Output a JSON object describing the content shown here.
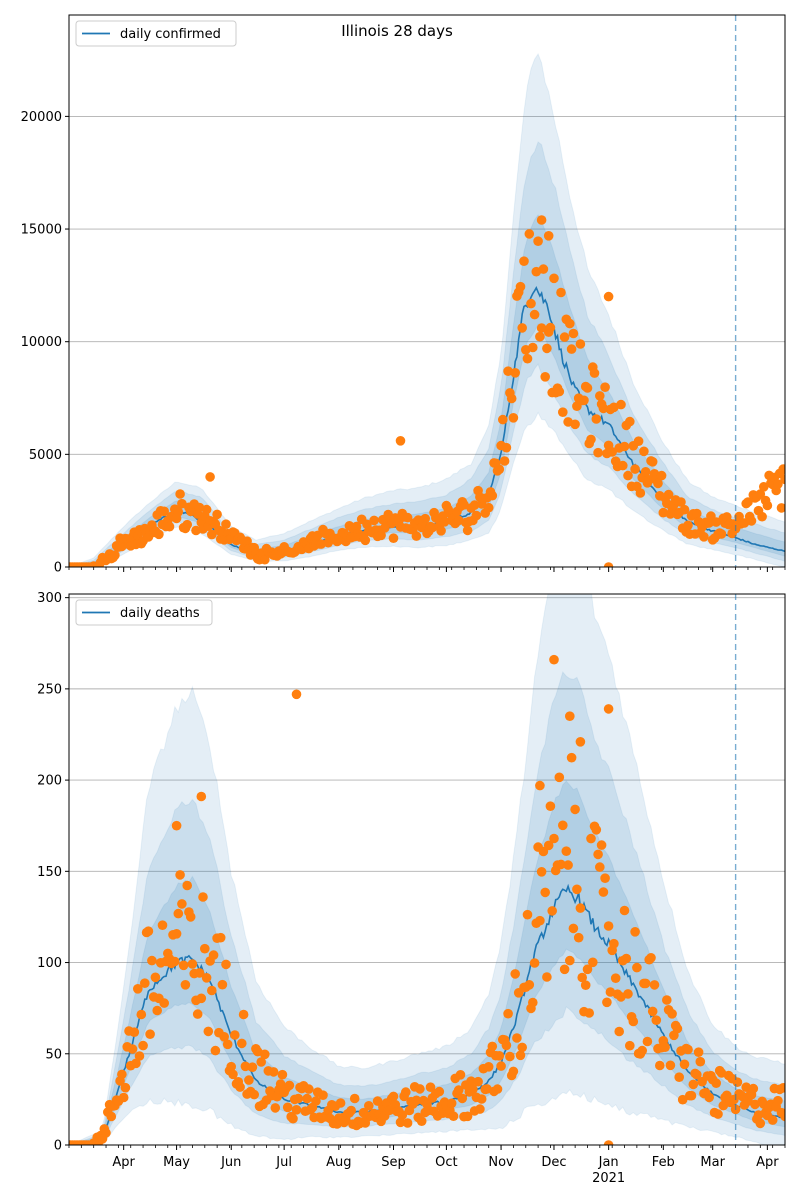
{
  "title": "Illinois 28 days",
  "colors": {
    "line": "#1f77b4",
    "points": "#ff7f0e",
    "band": "#1f77b4",
    "grid": "#b0b0b0",
    "vline": "#1f77b4"
  },
  "x_axis": {
    "tick_labels": [
      "Apr",
      "May",
      "Jun",
      "Jul",
      "Aug",
      "Sep",
      "Oct",
      "Nov",
      "Dec",
      "Jan",
      "Feb",
      "Mar",
      "Apr"
    ],
    "tick_dates": [
      "2020-04-01",
      "2020-05-01",
      "2020-06-01",
      "2020-07-01",
      "2020-08-01",
      "2020-09-01",
      "2020-10-01",
      "2020-11-01",
      "2020-12-01",
      "2021-01-01",
      "2021-02-01",
      "2021-03-01",
      "2021-04-01"
    ],
    "year_label": "2021",
    "range": [
      "2020-03-01",
      "2021-04-11"
    ],
    "forecast_line_date": "2021-03-14"
  },
  "chart_data": [
    {
      "type": "line",
      "panel": "top",
      "legend": [
        "daily confirmed"
      ],
      "legend_position": "upper left",
      "ylim": [
        0,
        24500
      ],
      "yticks": [
        0,
        5000,
        10000,
        15000,
        20000
      ],
      "grid": "y",
      "series": [
        {
          "name": "daily confirmed",
          "kind": "line",
          "x": [
            "2020-03-01",
            "2020-03-10",
            "2020-03-20",
            "2020-04-01",
            "2020-04-15",
            "2020-05-01",
            "2020-05-10",
            "2020-05-20",
            "2020-06-01",
            "2020-06-15",
            "2020-07-01",
            "2020-07-15",
            "2020-08-01",
            "2020-08-15",
            "2020-09-01",
            "2020-09-15",
            "2020-10-01",
            "2020-10-15",
            "2020-10-25",
            "2020-11-01",
            "2020-11-08",
            "2020-11-14",
            "2020-11-20",
            "2020-11-28",
            "2020-12-05",
            "2020-12-12",
            "2020-12-20",
            "2021-01-01",
            "2021-01-10",
            "2021-01-20",
            "2021-02-01",
            "2021-02-15",
            "2021-03-01",
            "2021-03-14",
            "2021-03-25",
            "2021-04-11"
          ],
          "y": [
            0,
            40,
            300,
            1000,
            1800,
            2500,
            2300,
            1800,
            1000,
            550,
            700,
            1000,
            1400,
            1650,
            1800,
            1800,
            2000,
            2400,
            3200,
            5000,
            8500,
            11500,
            12500,
            11500,
            9500,
            8000,
            7000,
            6300,
            5200,
            4000,
            3000,
            2000,
            1600,
            1300,
            1000,
            700
          ]
        }
      ],
      "bands": {
        "x": [
          "2020-03-01",
          "2020-03-15",
          "2020-04-01",
          "2020-04-15",
          "2020-05-01",
          "2020-05-15",
          "2020-06-01",
          "2020-06-15",
          "2020-07-01",
          "2020-07-15",
          "2020-08-01",
          "2020-08-15",
          "2020-09-01",
          "2020-09-15",
          "2020-10-01",
          "2020-10-15",
          "2020-10-25",
          "2020-11-01",
          "2020-11-08",
          "2020-11-15",
          "2020-11-22",
          "2020-12-01",
          "2020-12-10",
          "2020-12-20",
          "2021-01-01",
          "2021-01-15",
          "2021-02-01",
          "2021-02-15",
          "2021-03-01",
          "2021-03-15",
          "2021-04-11"
        ],
        "center": [
          0,
          100,
          1000,
          1800,
          2500,
          2200,
          1000,
          600,
          700,
          1000,
          1400,
          1650,
          1800,
          1800,
          2000,
          2400,
          3200,
          5000,
          8500,
          11500,
          12500,
          11000,
          9000,
          7200,
          6200,
          4500,
          3000,
          2000,
          1600,
          1300,
          700
        ],
        "half_widths": [
          [
            0,
            300,
            800,
            1000,
            1300,
            1300,
            800,
            600,
            800,
            1000,
            1200,
            1400,
            1600,
            1700,
            1900,
            2200,
            3000,
            4500,
            7000,
            9500,
            10500,
            9000,
            7500,
            6000,
            5000,
            3700,
            2500,
            1800,
            1500,
            1400,
            1300
          ],
          [
            0,
            200,
            500,
            650,
            900,
            900,
            500,
            400,
            500,
            650,
            800,
            900,
            1000,
            1100,
            1200,
            1500,
            2000,
            3000,
            4500,
            6000,
            6500,
            6000,
            5000,
            4000,
            3200,
            2300,
            1600,
            1100,
            950,
            850,
            800
          ],
          [
            0,
            100,
            250,
            350,
            450,
            450,
            250,
            200,
            250,
            350,
            400,
            450,
            500,
            550,
            600,
            750,
            1000,
            1500,
            2200,
            3000,
            3200,
            3000,
            2500,
            2000,
            1600,
            1100,
            800,
            550,
            480,
            420,
            400
          ]
        ]
      },
      "scatter_anchors": {
        "x": [
          "2020-03-01",
          "2020-03-15",
          "2020-03-25",
          "2020-04-01",
          "2020-04-15",
          "2020-05-01",
          "2020-05-15",
          "2020-06-01",
          "2020-06-15",
          "2020-07-01",
          "2020-07-15",
          "2020-08-01",
          "2020-08-15",
          "2020-09-01",
          "2020-09-15",
          "2020-10-01",
          "2020-10-15",
          "2020-10-25",
          "2020-11-01",
          "2020-11-08",
          "2020-11-15",
          "2020-11-22",
          "2020-12-01",
          "2020-12-10",
          "2020-12-20",
          "2021-01-01",
          "2021-01-15",
          "2021-02-01",
          "2021-02-15",
          "2021-03-01",
          "2021-03-14",
          "2021-03-25",
          "2021-04-11"
        ],
        "y": [
          0,
          50,
          500,
          1100,
          1500,
          2500,
          2300,
          1400,
          600,
          700,
          1000,
          1400,
          1700,
          1900,
          1800,
          2100,
          2400,
          3400,
          5000,
          9000,
          12500,
          12000,
          10500,
          8500,
          7200,
          6300,
          5000,
          3200,
          2000,
          1700,
          2000,
          2600,
          3800
        ]
      },
      "scatter_outliers": [
        {
          "x": "2020-09-05",
          "y": 5600
        },
        {
          "x": "2020-11-24",
          "y": 15400
        },
        {
          "x": "2020-11-28",
          "y": 14700
        },
        {
          "x": "2021-01-01",
          "y": 12000
        },
        {
          "x": "2021-01-01",
          "y": 0
        },
        {
          "x": "2020-05-20",
          "y": 4000
        }
      ]
    },
    {
      "type": "line",
      "panel": "bottom",
      "legend": [
        "daily deaths"
      ],
      "legend_position": "upper left",
      "ylim": [
        0,
        302
      ],
      "yticks": [
        0,
        50,
        100,
        150,
        200,
        250,
        300
      ],
      "grid": "y",
      "series": [
        {
          "name": "daily deaths",
          "kind": "line",
          "x": [
            "2020-03-01",
            "2020-03-20",
            "2020-04-01",
            "2020-04-15",
            "2020-05-01",
            "2020-05-10",
            "2020-05-20",
            "2020-06-01",
            "2020-06-15",
            "2020-07-01",
            "2020-07-15",
            "2020-08-01",
            "2020-08-15",
            "2020-09-01",
            "2020-09-15",
            "2020-10-01",
            "2020-10-15",
            "2020-10-25",
            "2020-11-01",
            "2020-11-10",
            "2020-11-20",
            "2020-12-01",
            "2020-12-08",
            "2020-12-15",
            "2020-12-25",
            "2021-01-01",
            "2021-01-10",
            "2021-01-20",
            "2021-02-01",
            "2021-02-15",
            "2021-03-01",
            "2021-03-14",
            "2021-03-25",
            "2021-04-11"
          ],
          "y": [
            0,
            3,
            40,
            85,
            100,
            102,
            90,
            60,
            35,
            25,
            22,
            18,
            18,
            20,
            22,
            24,
            28,
            35,
            45,
            70,
            105,
            130,
            140,
            135,
            118,
            110,
            95,
            80,
            60,
            40,
            28,
            22,
            18,
            15
          ]
        }
      ],
      "bands": {
        "x": [
          "2020-03-01",
          "2020-03-20",
          "2020-04-01",
          "2020-04-15",
          "2020-05-01",
          "2020-05-10",
          "2020-05-20",
          "2020-06-01",
          "2020-06-15",
          "2020-07-01",
          "2020-07-15",
          "2020-08-01",
          "2020-08-15",
          "2020-09-01",
          "2020-09-15",
          "2020-10-01",
          "2020-10-15",
          "2020-10-25",
          "2020-11-01",
          "2020-11-10",
          "2020-11-20",
          "2020-12-01",
          "2020-12-08",
          "2020-12-15",
          "2020-12-25",
          "2021-01-01",
          "2021-01-10",
          "2021-01-20",
          "2021-02-01",
          "2021-02-15",
          "2021-03-01",
          "2021-03-14",
          "2021-03-25",
          "2021-04-11"
        ],
        "center": [
          0,
          3,
          40,
          85,
          100,
          102,
          90,
          60,
          35,
          25,
          22,
          18,
          18,
          20,
          22,
          24,
          28,
          35,
          45,
          70,
          105,
          130,
          140,
          135,
          118,
          110,
          95,
          80,
          60,
          40,
          28,
          22,
          18,
          15
        ],
        "half_widths": [
          [
            0,
            5,
            45,
            110,
            140,
            145,
            130,
            90,
            55,
            40,
            32,
            25,
            24,
            26,
            28,
            30,
            36,
            48,
            65,
            100,
            150,
            190,
            200,
            195,
            170,
            160,
            140,
            115,
            85,
            55,
            38,
            32,
            30,
            30
          ],
          [
            0,
            3,
            28,
            65,
            85,
            88,
            78,
            55,
            33,
            24,
            19,
            15,
            14,
            15,
            17,
            18,
            22,
            29,
            38,
            60,
            90,
            115,
            120,
            117,
            102,
            95,
            85,
            70,
            50,
            33,
            23,
            19,
            18,
            18
          ],
          [
            0,
            2,
            14,
            32,
            42,
            44,
            38,
            27,
            16,
            12,
            10,
            8,
            7,
            8,
            8,
            9,
            11,
            14,
            19,
            30,
            45,
            57,
            60,
            58,
            51,
            48,
            42,
            35,
            25,
            16,
            11,
            9,
            9,
            9
          ]
        ]
      },
      "scatter_anchors": {
        "x": [
          "2020-03-01",
          "2020-03-20",
          "2020-04-01",
          "2020-04-15",
          "2020-05-01",
          "2020-05-10",
          "2020-05-20",
          "2020-06-01",
          "2020-06-15",
          "2020-07-01",
          "2020-07-15",
          "2020-08-01",
          "2020-08-15",
          "2020-09-01",
          "2020-09-15",
          "2020-10-01",
          "2020-10-15",
          "2020-10-25",
          "2020-11-01",
          "2020-11-10",
          "2020-11-20",
          "2020-12-01",
          "2020-12-08",
          "2020-12-15",
          "2020-12-25",
          "2021-01-01",
          "2021-01-10",
          "2021-01-20",
          "2021-02-01",
          "2021-02-15",
          "2021-03-01",
          "2021-03-14",
          "2021-03-25",
          "2021-04-11"
        ],
        "y": [
          0,
          3,
          40,
          85,
          105,
          100,
          95,
          65,
          40,
          27,
          22,
          18,
          18,
          20,
          22,
          24,
          28,
          35,
          45,
          70,
          110,
          140,
          150,
          140,
          120,
          110,
          95,
          80,
          60,
          40,
          30,
          25,
          22,
          22
        ]
      },
      "scatter_outliers": [
        {
          "x": "2020-07-08",
          "y": 247
        },
        {
          "x": "2020-05-15",
          "y": 191
        },
        {
          "x": "2020-05-01",
          "y": 175
        },
        {
          "x": "2020-12-01",
          "y": 266
        },
        {
          "x": "2021-01-01",
          "y": 239
        },
        {
          "x": "2020-11-23",
          "y": 197
        },
        {
          "x": "2021-01-01",
          "y": 0
        },
        {
          "x": "2020-12-10",
          "y": 235
        },
        {
          "x": "2020-12-16",
          "y": 221
        }
      ]
    }
  ]
}
